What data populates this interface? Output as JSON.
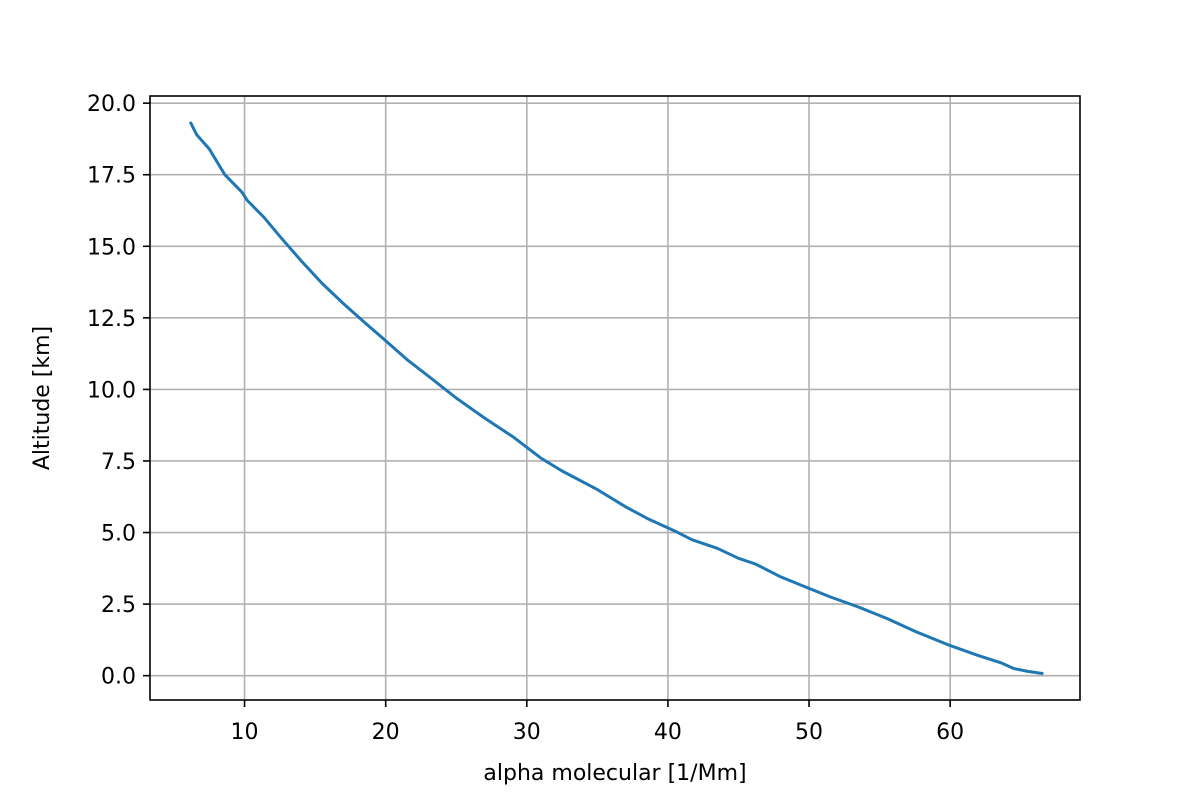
{
  "chart_data": {
    "type": "line",
    "title": "",
    "xlabel": "alpha molecular [1/Mm]",
    "ylabel": "Altitude [km]",
    "xlim": [
      3.3,
      69.2
    ],
    "ylim": [
      -0.85,
      20.25
    ],
    "xticks": [
      10,
      20,
      30,
      40,
      50,
      60
    ],
    "xtick_labels": [
      "10",
      "20",
      "30",
      "40",
      "50",
      "60"
    ],
    "yticks": [
      0.0,
      2.5,
      5.0,
      7.5,
      10.0,
      12.5,
      15.0,
      17.5,
      20.0
    ],
    "ytick_labels": [
      "0.0",
      "2.5",
      "5.0",
      "7.5",
      "10.0",
      "12.5",
      "15.0",
      "17.5",
      "20.0"
    ],
    "grid": true,
    "series": [
      {
        "color": "#1f77b4",
        "points": [
          [
            6.2,
            19.3
          ],
          [
            6.6,
            18.9
          ],
          [
            7.5,
            18.4
          ],
          [
            8.6,
            17.5
          ],
          [
            9.8,
            16.9
          ],
          [
            10.2,
            16.6
          ],
          [
            11.4,
            16.0
          ],
          [
            12.5,
            15.35
          ],
          [
            14.0,
            14.5
          ],
          [
            15.5,
            13.7
          ],
          [
            17.0,
            13.0
          ],
          [
            18.6,
            12.3
          ],
          [
            20.0,
            11.7
          ],
          [
            21.5,
            11.05
          ],
          [
            23.2,
            10.4
          ],
          [
            25.0,
            9.7
          ],
          [
            27.0,
            9.0
          ],
          [
            29.0,
            8.35
          ],
          [
            31.0,
            7.6
          ],
          [
            32.5,
            7.15
          ],
          [
            35.0,
            6.5
          ],
          [
            37.0,
            5.9
          ],
          [
            38.5,
            5.5
          ],
          [
            40.5,
            5.05
          ],
          [
            41.7,
            4.75
          ],
          [
            43.5,
            4.45
          ],
          [
            45.0,
            4.1
          ],
          [
            46.2,
            3.9
          ],
          [
            48.0,
            3.45
          ],
          [
            50.0,
            3.05
          ],
          [
            51.5,
            2.75
          ],
          [
            53.5,
            2.4
          ],
          [
            55.5,
            2.0
          ],
          [
            57.5,
            1.55
          ],
          [
            60.0,
            1.05
          ],
          [
            62.0,
            0.7
          ],
          [
            63.6,
            0.45
          ],
          [
            64.5,
            0.25
          ],
          [
            65.5,
            0.15
          ],
          [
            66.5,
            0.08
          ]
        ]
      }
    ]
  }
}
